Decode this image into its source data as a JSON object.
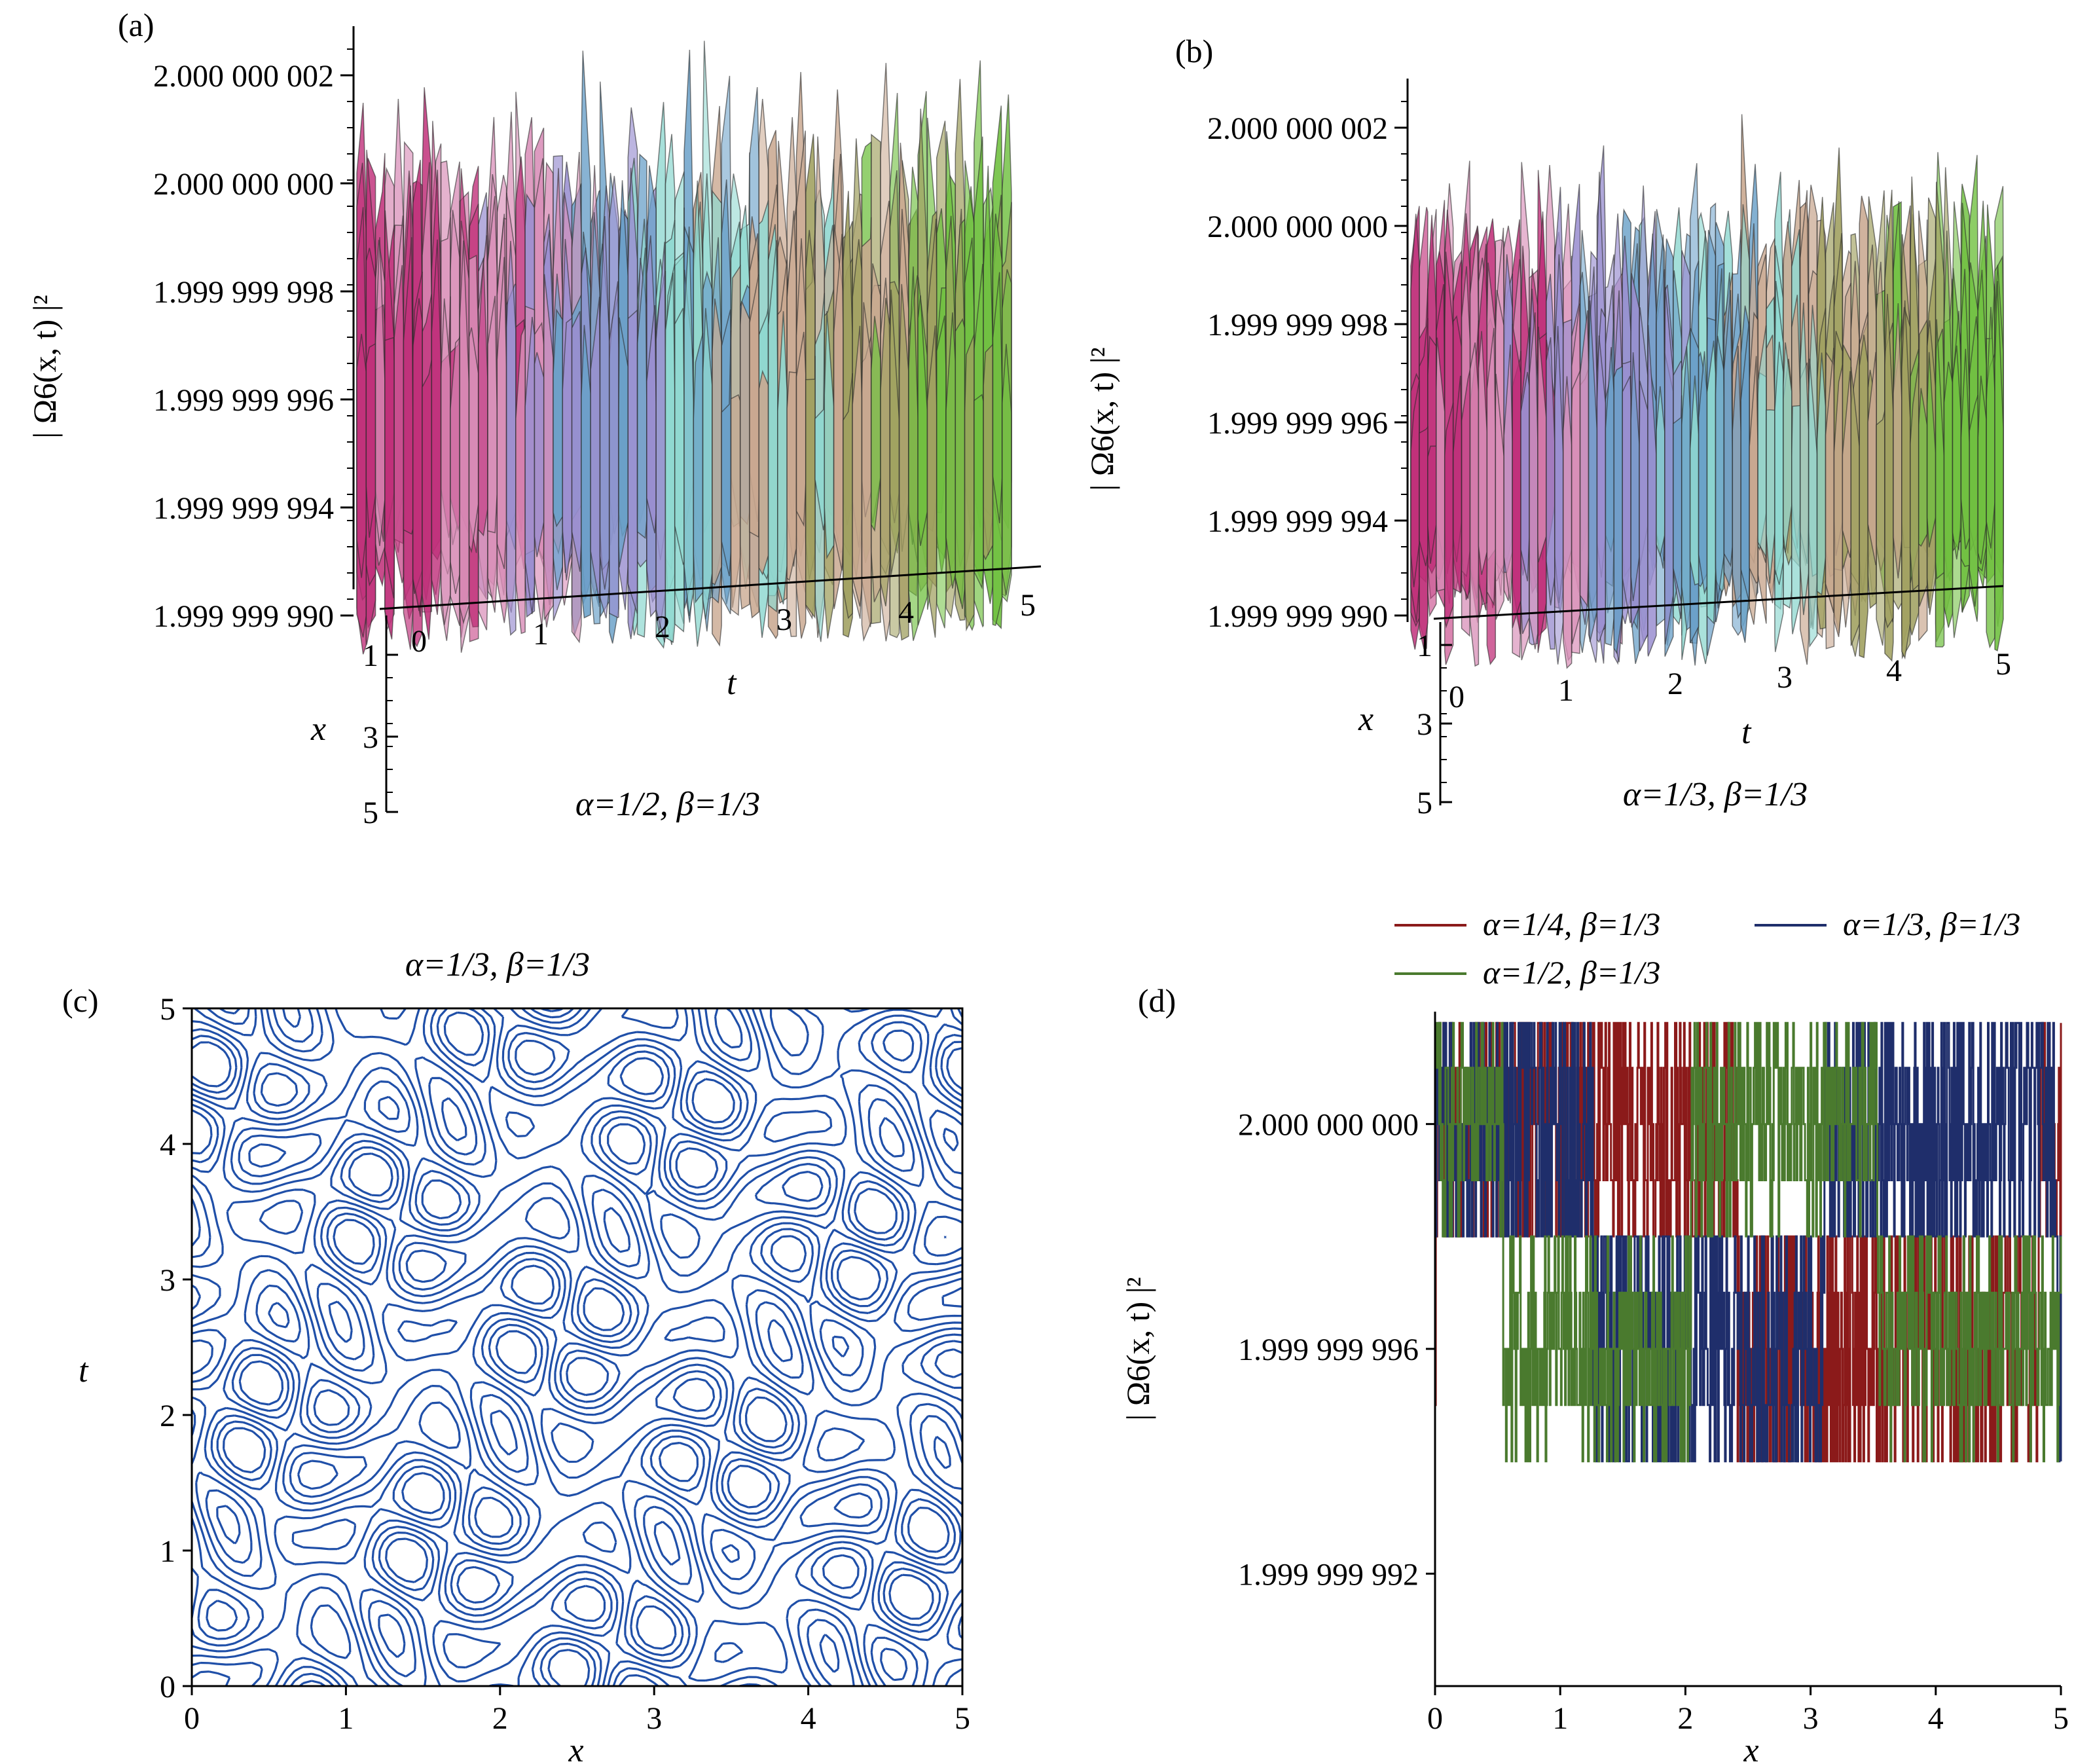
{
  "chart_data": [
    {
      "panel": "(a)",
      "type": "surface",
      "caption": "α=1/2, β=1/3",
      "zlabel": "| Ω6(x, t) |²",
      "xlabel": "x",
      "tlabel": "t",
      "z_ticks": [
        "2.000 000 002",
        "2.000 000 000",
        "1.999 999 998",
        "1.999 999 996",
        "1.999 999 994",
        "1.999 999 990"
      ],
      "t_ticks": [
        "0",
        "1",
        "2",
        "3",
        "4",
        "5"
      ],
      "x_ticks": [
        "1",
        "3",
        "5"
      ],
      "colors": [
        "#c0307a",
        "#d98fb8",
        "#9a8fd0",
        "#6aa0c8",
        "#8fd8d0",
        "#c9a890",
        "#a0a060",
        "#70c040"
      ]
    },
    {
      "panel": "(b)",
      "type": "surface",
      "caption": "α=1/3, β=1/3",
      "zlabel": "| Ω6(x, t) |²",
      "xlabel": "x",
      "tlabel": "t",
      "z_ticks": [
        "2.000 000 002",
        "2.000 000 000",
        "1.999 999 998",
        "1.999 999 996",
        "1.999 999 994",
        "1.999 999 990"
      ],
      "t_ticks": [
        "0",
        "1",
        "2",
        "3",
        "4",
        "5"
      ],
      "x_ticks": [
        "1",
        "3",
        "5"
      ],
      "colors": [
        "#c0307a",
        "#d98fb8",
        "#9a8fd0",
        "#6aa0c8",
        "#8fd8d0",
        "#c9a890",
        "#a0a060",
        "#70c040"
      ]
    },
    {
      "panel": "(c)",
      "type": "contour",
      "title": "α=1/3, β=1/3",
      "xlabel": "x",
      "ylabel": "t",
      "x_ticks": [
        0,
        1,
        2,
        3,
        4,
        5
      ],
      "y_ticks": [
        0,
        1,
        2,
        3,
        4,
        5
      ],
      "xlim": [
        0,
        5
      ],
      "ylim": [
        0,
        5
      ],
      "color": "#1f4fa8"
    },
    {
      "panel": "(d)",
      "type": "line",
      "xlabel": "x",
      "ylabel": "| Ω6(x, t) |²",
      "xlim": [
        0,
        5
      ],
      "ylim": [
        1.99999999,
        2.000000002
      ],
      "x_ticks": [
        "0",
        "1",
        "2",
        "3",
        "4",
        "5"
      ],
      "y_ticks": [
        {
          "value": 2.0,
          "label": "2.000 000 000"
        },
        {
          "value": 1.999999996,
          "label": "1.999 999 996"
        },
        {
          "value": 1.999999992,
          "label": "1.999 999 992"
        }
      ],
      "series": [
        {
          "name": "α=1/4, β=1/3",
          "color": "#8b1a1a"
        },
        {
          "name": "α=1/3, β=1/3",
          "color": "#1f2e6b"
        },
        {
          "name": "α=1/2, β=1/3",
          "color": "#4a7a2e"
        }
      ],
      "legend": "top"
    }
  ]
}
